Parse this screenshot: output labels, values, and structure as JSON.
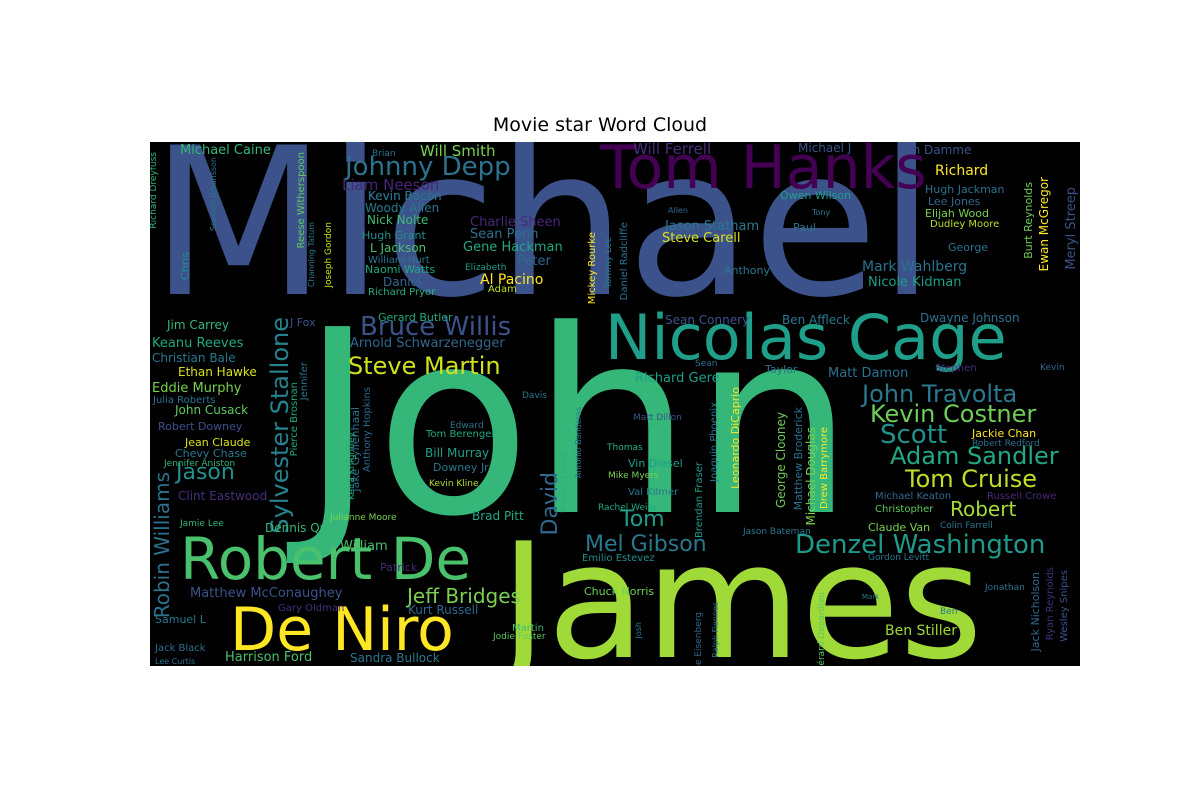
{
  "title": "Movie star Word Cloud",
  "words": [
    {
      "text": "Michael",
      "color": "#3b528b"
    },
    {
      "text": "John",
      "color": "#35b779"
    },
    {
      "text": "James",
      "color": "#a0da39"
    },
    {
      "text": "Tom Hanks",
      "color": "#440154"
    },
    {
      "text": "Nicolas Cage",
      "color": "#1f9e89"
    },
    {
      "text": "Robert De",
      "color": "#4ac16d"
    },
    {
      "text": "De Niro",
      "color": "#fde725"
    },
    {
      "text": "Johnny Depp",
      "color": "#2c728e"
    },
    {
      "text": "Bruce Willis",
      "color": "#3b528b"
    },
    {
      "text": "Steve Martin",
      "color": "#d0e11c"
    },
    {
      "text": "Sylvester Stallone",
      "color": "#26828e"
    },
    {
      "text": "John Travolta",
      "color": "#2a788e"
    },
    {
      "text": "Kevin Costner",
      "color": "#6ece58"
    },
    {
      "text": "Scott",
      "color": "#21918c"
    },
    {
      "text": "Adam Sandler",
      "color": "#22a884"
    },
    {
      "text": "Tom Cruise",
      "color": "#bddf26"
    },
    {
      "text": "Robert",
      "color": "#a5db36"
    },
    {
      "text": "Denzel Washington",
      "color": "#1f9a8a"
    },
    {
      "text": "Mel Gibson",
      "color": "#2a788e"
    },
    {
      "text": "Jeff Bridges",
      "color": "#7ad151"
    },
    {
      "text": "Robin Williams",
      "color": "#2c728e"
    },
    {
      "text": "Jason",
      "color": "#21918c"
    },
    {
      "text": "David",
      "color": "#31688e"
    },
    {
      "text": "Tom",
      "color": "#1f9e89"
    },
    {
      "text": "Will Smith",
      "color": "#7ad151"
    },
    {
      "text": "Will Ferrell",
      "color": "#472d7b"
    },
    {
      "text": "Michael Caine",
      "color": "#35b779"
    },
    {
      "text": "Liam Neeson",
      "color": "#482576"
    },
    {
      "text": "Kevin Bacon",
      "color": "#2c728e"
    },
    {
      "text": "Woody Allen",
      "color": "#2a788e"
    },
    {
      "text": "Nick Nolte",
      "color": "#3fbc73"
    },
    {
      "text": "Hugh Grant",
      "color": "#21918c"
    },
    {
      "text": "L Jackson",
      "color": "#4ac16d"
    },
    {
      "text": "William Hurt",
      "color": "#2a788e"
    },
    {
      "text": "Naomi Watts",
      "color": "#22a884"
    },
    {
      "text": "Daniel",
      "color": "#31688e"
    },
    {
      "text": "Richard Pryor",
      "color": "#2ab07f"
    },
    {
      "text": "Charlie Sheen",
      "color": "#482878"
    },
    {
      "text": "Sean Penn",
      "color": "#2c728e"
    },
    {
      "text": "Gene Hackman",
      "color": "#22a884"
    },
    {
      "text": "Peter",
      "color": "#31688e"
    },
    {
      "text": "Elizabeth",
      "color": "#1f9e89"
    },
    {
      "text": "Al Pacino",
      "color": "#fde725"
    },
    {
      "text": "Adam",
      "color": "#bddf26"
    },
    {
      "text": "Jason Statham",
      "color": "#2a788e"
    },
    {
      "text": "Steve Carell",
      "color": "#d8e219"
    },
    {
      "text": "Anthony",
      "color": "#2a788e"
    },
    {
      "text": "Mark Wahlberg",
      "color": "#2c728e"
    },
    {
      "text": "Nicole Kidman",
      "color": "#1f9e89"
    },
    {
      "text": "Richard",
      "color": "#fde725"
    },
    {
      "text": "Hugh Jackman",
      "color": "#2c728e"
    },
    {
      "text": "Lee Jones",
      "color": "#31688e"
    },
    {
      "text": "Elijah Wood",
      "color": "#7ad151"
    },
    {
      "text": "Dudley Moore",
      "color": "#b5de2b"
    },
    {
      "text": "Van Damme",
      "color": "#3b528b"
    },
    {
      "text": "Owen Wilson",
      "color": "#1f9e89"
    },
    {
      "text": "Michael J",
      "color": "#3b528b"
    },
    {
      "text": "Paul",
      "color": "#2c728e"
    },
    {
      "text": "George",
      "color": "#2c728e"
    },
    {
      "text": "Meryl Streep",
      "color": "#3b528b"
    },
    {
      "text": "Ewan McGregor",
      "color": "#fde725"
    },
    {
      "text": "Burt Reynolds",
      "color": "#6ece58"
    },
    {
      "text": "Dwayne Johnson",
      "color": "#2c728e"
    },
    {
      "text": "Ben Affleck",
      "color": "#2a788e"
    },
    {
      "text": "Sean Connery",
      "color": "#3b528b"
    },
    {
      "text": "Matt Damon",
      "color": "#2c728e"
    },
    {
      "text": "Taylor",
      "color": "#2c728e"
    },
    {
      "text": "Richard Gere",
      "color": "#1f9e89"
    },
    {
      "text": "Stephen",
      "color": "#472d7b"
    },
    {
      "text": "Kevin",
      "color": "#31688e"
    },
    {
      "text": "Jim Carrey",
      "color": "#35b779"
    },
    {
      "text": "Keanu Reeves",
      "color": "#22a884"
    },
    {
      "text": "Christian Bale",
      "color": "#2a788e"
    },
    {
      "text": "Ethan Hawke",
      "color": "#d8e219"
    },
    {
      "text": "Eddie Murphy",
      "color": "#7ad151"
    },
    {
      "text": "Julia Roberts",
      "color": "#2c728e"
    },
    {
      "text": "John Cusack",
      "color": "#5ec962"
    },
    {
      "text": "Robert Downey",
      "color": "#3b528b"
    },
    {
      "text": "Jean Claude",
      "color": "#d8e219"
    },
    {
      "text": "Chevy Chase",
      "color": "#2a788e"
    },
    {
      "text": "Jennifer Aniston",
      "color": "#35b779"
    },
    {
      "text": "Clint Eastwood",
      "color": "#472d7b"
    },
    {
      "text": "Arnold Schwarzenegger",
      "color": "#31688e"
    },
    {
      "text": "William",
      "color": "#4ac16d"
    },
    {
      "text": "Dennis Quaid",
      "color": "#35b779"
    },
    {
      "text": "Brad Pitt",
      "color": "#22a884"
    },
    {
      "text": "Matthew McConaughey",
      "color": "#3b528b"
    },
    {
      "text": "Kurt Russell",
      "color": "#31688e"
    },
    {
      "text": "Harrison Ford",
      "color": "#4ac16d"
    },
    {
      "text": "Sandra Bullock",
      "color": "#2a788e"
    },
    {
      "text": "Chuck Norris",
      "color": "#6ece58"
    },
    {
      "text": "Ben Stiller",
      "color": "#a0da39"
    },
    {
      "text": "Julianne Moore",
      "color": "#7ad151"
    },
    {
      "text": "Jodie Foster",
      "color": "#5ec962"
    },
    {
      "text": "Martin",
      "color": "#3fbc73"
    },
    {
      "text": "Jake Gyllenhaal",
      "color": "#2c728e"
    },
    {
      "text": "Anthony Hopkins",
      "color": "#31688e"
    },
    {
      "text": "Keira Knightley",
      "color": "#2ab07f"
    },
    {
      "text": "Pierce Brosnan",
      "color": "#22a884"
    },
    {
      "text": "Jennifer",
      "color": "#2c728e"
    },
    {
      "text": "Bill Murray",
      "color": "#1f9e89"
    },
    {
      "text": "Downey Jr",
      "color": "#2a788e"
    },
    {
      "text": "Kevin Kline",
      "color": "#b5de2b"
    },
    {
      "text": "Tom Berenger",
      "color": "#22a884"
    },
    {
      "text": "Edward",
      "color": "#2c728e"
    },
    {
      "text": "Vin Diesel",
      "color": "#1f9e89"
    },
    {
      "text": "Thomas",
      "color": "#2ab07f"
    },
    {
      "text": "Mike Myers",
      "color": "#7ad151"
    },
    {
      "text": "Val Kilmer",
      "color": "#2a788e"
    },
    {
      "text": "Rachel Weisz",
      "color": "#22a884"
    },
    {
      "text": "Leonardo DiCaprio",
      "color": "#fde725"
    },
    {
      "text": "Joaquin Phoenix",
      "color": "#2a788e"
    },
    {
      "text": "Brendan Fraser",
      "color": "#1f9e89"
    },
    {
      "text": "George Clooney",
      "color": "#6ece58"
    },
    {
      "text": "Matthew Broderick",
      "color": "#2c728e"
    },
    {
      "text": "Michael Douglas",
      "color": "#7ad151"
    },
    {
      "text": "Drew Barrymore",
      "color": "#fde725"
    },
    {
      "text": "Claude Van",
      "color": "#7ad151"
    },
    {
      "text": "Christopher",
      "color": "#5ec962"
    },
    {
      "text": "Colin Farrell",
      "color": "#2c728e"
    },
    {
      "text": "Michael Keaton",
      "color": "#31688e"
    },
    {
      "text": "Russell Crowe",
      "color": "#482878"
    },
    {
      "text": "Jackie Chan",
      "color": "#fde725"
    },
    {
      "text": "Robert Redford",
      "color": "#2c728e"
    },
    {
      "text": "Jason Bateman",
      "color": "#2a788e"
    },
    {
      "text": "Gordon Levitt",
      "color": "#2a788e"
    },
    {
      "text": "Emilio Estevez",
      "color": "#21918c"
    },
    {
      "text": "Jack Nicholson",
      "color": "#31688e"
    },
    {
      "text": "Ryan Reynolds",
      "color": "#472d7b"
    },
    {
      "text": "Wesley Snipes",
      "color": "#3b528b"
    },
    {
      "text": "Jonathan",
      "color": "#2c728e"
    },
    {
      "text": "Ben",
      "color": "#2a788e"
    },
    {
      "text": "Gérard Depardieu",
      "color": "#5ec962"
    },
    {
      "text": "Jesse Eisenberg",
      "color": "#31688e"
    },
    {
      "text": "Ralph Fiennes",
      "color": "#2c728e"
    },
    {
      "text": "Josh",
      "color": "#2a788e"
    },
    {
      "text": "Mickey Rourke",
      "color": "#fde725"
    },
    {
      "text": "Tommy Lee",
      "color": "#2a788e"
    },
    {
      "text": "Daniel Radcliffe",
      "color": "#2c728e"
    },
    {
      "text": "Kirsten Dunst",
      "color": "#2ab07f"
    },
    {
      "text": "Antonio Banderas",
      "color": "#2a788e"
    },
    {
      "text": "Matt Dillon",
      "color": "#3b528b"
    },
    {
      "text": "Davis",
      "color": "#2c728e"
    },
    {
      "text": "Sean",
      "color": "#2c728e"
    },
    {
      "text": "Richard Dreyfuss",
      "color": "#35b779"
    },
    {
      "text": "Scarlett Johansson",
      "color": "#2c728e"
    },
    {
      "text": "Reese Witherspoon",
      "color": "#5ec962"
    },
    {
      "text": "Channing Tatum",
      "color": "#2a788e"
    },
    {
      "text": "Joseph Gordon",
      "color": "#d0e11c"
    },
    {
      "text": "Chris",
      "color": "#21918c"
    },
    {
      "text": "Brian",
      "color": "#2c728e"
    },
    {
      "text": "Samuel L",
      "color": "#2a788e"
    },
    {
      "text": "Jack Black",
      "color": "#2c728e"
    },
    {
      "text": "Lee Curtis",
      "color": "#2c728e"
    },
    {
      "text": "Jamie Lee",
      "color": "#35b779"
    },
    {
      "text": "Patrick",
      "color": "#482878"
    },
    {
      "text": "Gary Oldman",
      "color": "#472d7b"
    },
    {
      "text": "Gerard Butler",
      "color": "#22a884"
    },
    {
      "text": "J Fox",
      "color": "#3b528b"
    },
    {
      "text": "Allen",
      "color": "#31688e"
    },
    {
      "text": "Tony",
      "color": "#2a788e"
    },
    {
      "text": "Mark",
      "color": "#2a788e"
    },
    {
      "text": "Kevin Bacon",
      "color": "#2c728e"
    }
  ]
}
